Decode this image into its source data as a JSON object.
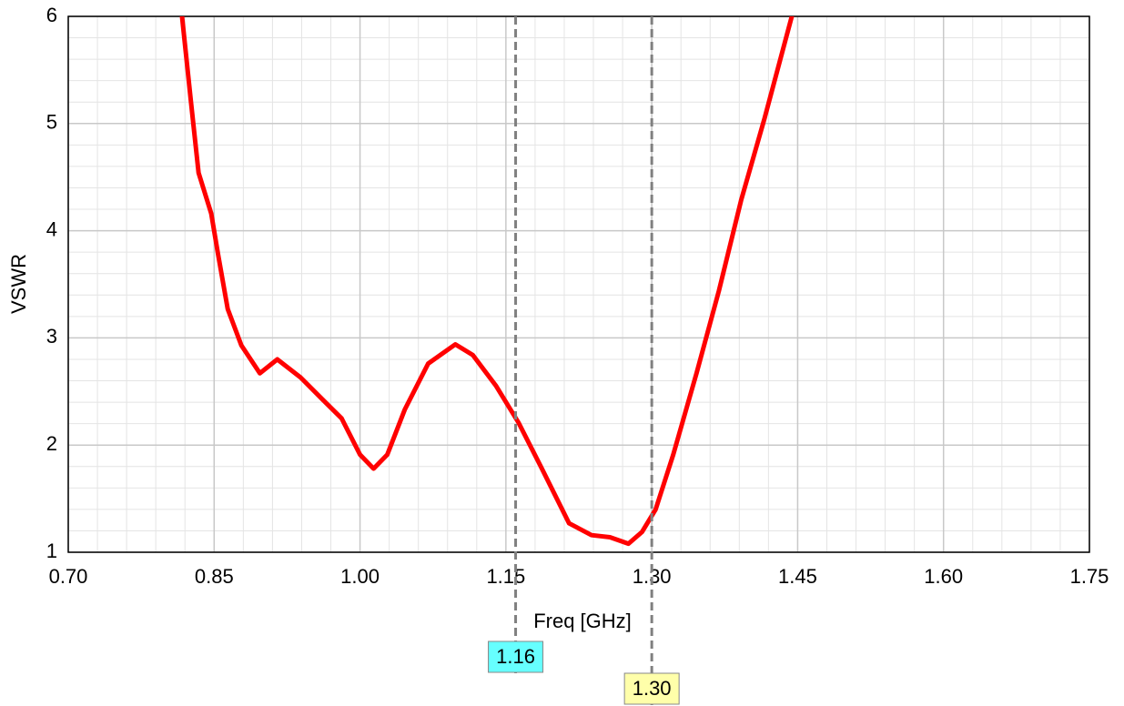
{
  "chart_data": {
    "type": "line",
    "xlabel": "Freq [GHz]",
    "ylabel": "VSWR",
    "xlim": [
      0.7,
      1.75
    ],
    "ylim": [
      1,
      6
    ],
    "xticks": [
      {
        "value": 0.7,
        "label": "0.70"
      },
      {
        "value": 0.85,
        "label": "0.85"
      },
      {
        "value": 1.0,
        "label": "1.00"
      },
      {
        "value": 1.15,
        "label": "1.15"
      },
      {
        "value": 1.3,
        "label": "1.30"
      },
      {
        "value": 1.45,
        "label": "1.45"
      },
      {
        "value": 1.6,
        "label": "1.60"
      },
      {
        "value": 1.75,
        "label": "1.75"
      }
    ],
    "yticks": [
      1,
      2,
      3,
      4,
      5,
      6
    ],
    "grid": true,
    "series": [
      {
        "color": "#ff0000",
        "x": [
          0.817,
          0.826,
          0.834,
          0.847,
          0.854,
          0.864,
          0.878,
          0.897,
          0.915,
          0.939,
          0.962,
          0.981,
          1.0,
          1.014,
          1.028,
          1.046,
          1.07,
          1.098,
          1.116,
          1.14,
          1.163,
          1.187,
          1.215,
          1.238,
          1.257,
          1.276,
          1.29,
          1.304,
          1.322,
          1.346,
          1.369,
          1.392,
          1.416,
          1.444
        ],
        "values": [
          6.0,
          5.22,
          4.54,
          4.16,
          3.78,
          3.27,
          2.93,
          2.67,
          2.8,
          2.63,
          2.42,
          2.25,
          1.91,
          1.78,
          1.91,
          2.33,
          2.76,
          2.94,
          2.84,
          2.55,
          2.21,
          1.78,
          1.27,
          1.16,
          1.14,
          1.08,
          1.19,
          1.4,
          1.91,
          2.67,
          3.44,
          4.29,
          5.05,
          6.0
        ]
      }
    ],
    "markers": [
      {
        "value": 1.16,
        "label": "1.16",
        "color": "#66ffff"
      },
      {
        "value": 1.3,
        "label": "1.30",
        "color": "#ffffaa"
      }
    ]
  }
}
